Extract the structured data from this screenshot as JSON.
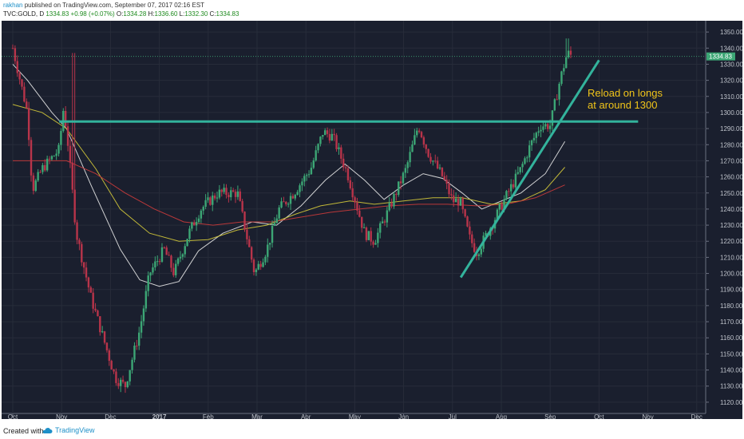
{
  "header": {
    "user": "rakhan",
    "published": "published on TradingView.com, September 07, 2017 02:16 EST",
    "symbol": "TVC:GOLD, D",
    "last": "1334.83",
    "change": "+0.98 (+0.07%)",
    "open_label": "O:",
    "open": "1334.28",
    "high_label": "H:",
    "high": "1336.60",
    "low_label": "L:",
    "low": "1332.30",
    "close_label": "C:",
    "close": "1334.83"
  },
  "footer": {
    "created_with": "Created with",
    "brand": "TradingView"
  },
  "colors": {
    "background": "#1a1f2e",
    "up": "#3ca675",
    "down": "#b8344a",
    "trend": "#33b39c",
    "note": "#f0c419"
  },
  "chart_data": {
    "type": "candlestick",
    "title": "TVC:GOLD, D",
    "ylim": [
      1113,
      1357
    ],
    "y_ticks": [
      "1120.00",
      "1130.00",
      "1140.00",
      "1150.00",
      "1160.00",
      "1170.00",
      "1180.00",
      "1190.00",
      "1200.00",
      "1210.00",
      "1220.00",
      "1230.00",
      "1240.00",
      "1250.00",
      "1260.00",
      "1270.00",
      "1280.00",
      "1290.00",
      "1300.00",
      "1310.00",
      "1320.00",
      "1330.00",
      "1340.00",
      "1350.00"
    ],
    "x_ticks": [
      {
        "label": "Oct",
        "month": 0
      },
      {
        "label": "Nov",
        "month": 1
      },
      {
        "label": "Dec",
        "month": 2
      },
      {
        "label": "2017",
        "month": 3
      },
      {
        "label": "Feb",
        "month": 4
      },
      {
        "label": "Mar",
        "month": 5
      },
      {
        "label": "Apr",
        "month": 6
      },
      {
        "label": "May",
        "month": 7
      },
      {
        "label": "Jun",
        "month": 8
      },
      {
        "label": "Jul",
        "month": 9
      },
      {
        "label": "Aug",
        "month": 10
      },
      {
        "label": "Sep",
        "month": 11
      },
      {
        "label": "Oct",
        "month": 12
      },
      {
        "label": "Nov",
        "month": 13
      },
      {
        "label": "Dec",
        "month": 14
      }
    ],
    "close_path": [
      [
        0,
        1340
      ],
      [
        0.3,
        1300
      ],
      [
        0.4,
        1252
      ],
      [
        0.6,
        1265
      ],
      [
        0.95,
        1277
      ],
      [
        1.03,
        1302
      ],
      [
        1.1,
        1290
      ],
      [
        1.3,
        1225
      ],
      [
        1.6,
        1185
      ],
      [
        1.85,
        1160
      ],
      [
        2.1,
        1135
      ],
      [
        2.3,
        1130
      ],
      [
        2.6,
        1165
      ],
      [
        2.8,
        1200
      ],
      [
        3.1,
        1215
      ],
      [
        3.3,
        1200
      ],
      [
        3.6,
        1225
      ],
      [
        3.85,
        1240
      ],
      [
        4.2,
        1250
      ],
      [
        4.6,
        1250
      ],
      [
        4.95,
        1200
      ],
      [
        5.2,
        1215
      ],
      [
        5.45,
        1240
      ],
      [
        5.75,
        1250
      ],
      [
        6.1,
        1265
      ],
      [
        6.35,
        1288
      ],
      [
        6.55,
        1285
      ],
      [
        6.85,
        1262
      ],
      [
        7.2,
        1225
      ],
      [
        7.4,
        1220
      ],
      [
        7.7,
        1240
      ],
      [
        8.05,
        1265
      ],
      [
        8.3,
        1292
      ],
      [
        8.5,
        1275
      ],
      [
        8.8,
        1260
      ],
      [
        9.0,
        1245
      ],
      [
        9.15,
        1245
      ],
      [
        9.35,
        1222
      ],
      [
        9.5,
        1213
      ],
      [
        9.8,
        1230
      ],
      [
        10.1,
        1248
      ],
      [
        10.4,
        1265
      ],
      [
        10.6,
        1280
      ],
      [
        10.8,
        1292
      ],
      [
        11.0,
        1292
      ],
      [
        11.2,
        1320
      ],
      [
        11.35,
        1337
      ],
      [
        11.45,
        1335
      ]
    ],
    "moving_averages": [
      {
        "color": "#e6e6e6",
        "values": [
          [
            0,
            1330
          ],
          [
            0.3,
            1320
          ],
          [
            0.8,
            1300
          ],
          [
            1.1,
            1290
          ],
          [
            1.6,
            1255
          ],
          [
            2.2,
            1215
          ],
          [
            2.6,
            1196
          ],
          [
            3.0,
            1192
          ],
          [
            3.4,
            1195
          ],
          [
            3.8,
            1214
          ],
          [
            4.3,
            1225
          ],
          [
            4.9,
            1232
          ],
          [
            5.4,
            1230
          ],
          [
            5.9,
            1242
          ],
          [
            6.4,
            1258
          ],
          [
            6.8,
            1268
          ],
          [
            7.2,
            1258
          ],
          [
            7.6,
            1246
          ],
          [
            8.0,
            1255
          ],
          [
            8.4,
            1262
          ],
          [
            8.8,
            1259
          ],
          [
            9.2,
            1250
          ],
          [
            9.6,
            1240
          ],
          [
            10.0,
            1245
          ],
          [
            10.4,
            1250
          ],
          [
            10.9,
            1262
          ],
          [
            11.3,
            1282
          ]
        ]
      },
      {
        "color": "#d4c93a",
        "values": [
          [
            0,
            1305
          ],
          [
            0.6,
            1300
          ],
          [
            1.1,
            1290
          ],
          [
            1.7,
            1265
          ],
          [
            2.2,
            1240
          ],
          [
            2.8,
            1225
          ],
          [
            3.4,
            1220
          ],
          [
            4.0,
            1221
          ],
          [
            4.6,
            1227
          ],
          [
            5.2,
            1230
          ],
          [
            5.8,
            1237
          ],
          [
            6.3,
            1242
          ],
          [
            6.9,
            1245
          ],
          [
            7.4,
            1243
          ],
          [
            8.0,
            1245
          ],
          [
            8.6,
            1247
          ],
          [
            9.2,
            1247
          ],
          [
            9.8,
            1243
          ],
          [
            10.4,
            1245
          ],
          [
            10.9,
            1252
          ],
          [
            11.3,
            1266
          ]
        ]
      },
      {
        "color": "#cc3b3b",
        "values": [
          [
            0,
            1270
          ],
          [
            0.5,
            1270
          ],
          [
            1.1,
            1270
          ],
          [
            1.7,
            1262
          ],
          [
            2.3,
            1250
          ],
          [
            2.9,
            1240
          ],
          [
            3.5,
            1232
          ],
          [
            4.1,
            1230
          ],
          [
            4.7,
            1232
          ],
          [
            5.3,
            1232
          ],
          [
            5.9,
            1235
          ],
          [
            6.5,
            1238
          ],
          [
            7.1,
            1240
          ],
          [
            7.7,
            1242
          ],
          [
            8.3,
            1243
          ],
          [
            8.9,
            1243
          ],
          [
            9.5,
            1242
          ],
          [
            10.1,
            1243
          ],
          [
            10.7,
            1247
          ],
          [
            11.3,
            1255
          ]
        ]
      }
    ],
    "horizontal_line": {
      "price": 1294.4,
      "from_month": 0.95,
      "to_month": 12.8,
      "color": "#33b39c"
    },
    "trendline": {
      "from": [
        9.17,
        1197.5
      ],
      "to": [
        12.0,
        1332.5
      ],
      "color": "#33b39c"
    },
    "annotation": {
      "lines": [
        "Reload on longs",
        "at around 1300"
      ],
      "color": "#f0c419"
    },
    "last_price": {
      "value": 1334.83,
      "label": "1334.83"
    }
  }
}
